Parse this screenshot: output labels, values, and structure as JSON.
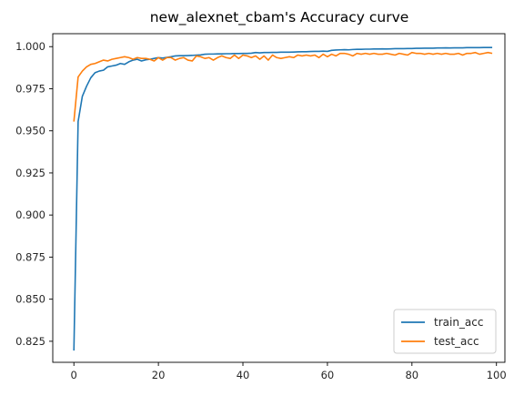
{
  "chart_data": {
    "type": "line",
    "title": "new_alexnet_cbam's Accuracy curve",
    "xlabel": "",
    "ylabel": "",
    "xlim": [
      -5,
      102
    ],
    "ylim": [
      0.8125,
      1.0077
    ],
    "xticks": [
      0,
      20,
      40,
      60,
      80,
      100
    ],
    "yticks": [
      0.825,
      0.85,
      0.875,
      0.9,
      0.925,
      0.95,
      0.975,
      1.0
    ],
    "ytick_labels": [
      "0.825",
      "0.850",
      "0.875",
      "0.900",
      "0.925",
      "0.950",
      "0.975",
      "1.000"
    ],
    "grid": false,
    "legend_position": "lower-right",
    "colors": {
      "train_acc": "#1f77b4",
      "test_acc": "#ff7f0e"
    },
    "series": [
      {
        "name": "train_acc",
        "color": "#1f77b4",
        "x": [
          0,
          1,
          2,
          3,
          4,
          5,
          6,
          7,
          8,
          9,
          10,
          11,
          12,
          13,
          14,
          15,
          16,
          17,
          18,
          19,
          20,
          21,
          22,
          23,
          24,
          25,
          26,
          27,
          28,
          29,
          30,
          31,
          32,
          33,
          34,
          35,
          36,
          37,
          38,
          39,
          40,
          41,
          42,
          43,
          44,
          45,
          46,
          47,
          48,
          49,
          50,
          51,
          52,
          53,
          54,
          55,
          56,
          57,
          58,
          59,
          60,
          61,
          62,
          63,
          64,
          65,
          66,
          67,
          68,
          69,
          70,
          71,
          72,
          73,
          74,
          75,
          76,
          77,
          78,
          79,
          80,
          81,
          82,
          83,
          84,
          85,
          86,
          87,
          88,
          89,
          90,
          91,
          92,
          93,
          94,
          95,
          96,
          97,
          98,
          99
        ],
        "values": [
          0.8195,
          0.9555,
          0.9705,
          0.9765,
          0.9815,
          0.9845,
          0.9855,
          0.986,
          0.988,
          0.9885,
          0.989,
          0.99,
          0.9895,
          0.991,
          0.992,
          0.9925,
          0.9915,
          0.9922,
          0.9925,
          0.993,
          0.9935,
          0.9932,
          0.9936,
          0.994,
          0.9945,
          0.9946,
          0.9946,
          0.9947,
          0.9948,
          0.995,
          0.9951,
          0.9955,
          0.9956,
          0.9956,
          0.9957,
          0.9957,
          0.9958,
          0.9958,
          0.9959,
          0.9959,
          0.996,
          0.996,
          0.9961,
          0.9965,
          0.9963,
          0.9965,
          0.9965,
          0.9966,
          0.9966,
          0.9967,
          0.9967,
          0.9967,
          0.9968,
          0.9969,
          0.997,
          0.997,
          0.9971,
          0.9972,
          0.9972,
          0.9973,
          0.9972,
          0.9978,
          0.998,
          0.9981,
          0.9982,
          0.9981,
          0.9983,
          0.9984,
          0.9984,
          0.9985,
          0.9985,
          0.9986,
          0.9986,
          0.9987,
          0.9986,
          0.9987,
          0.9988,
          0.9988,
          0.9988,
          0.9989,
          0.9989,
          0.999,
          0.999,
          0.9991,
          0.9991,
          0.9991,
          0.9992,
          0.9992,
          0.9993,
          0.9992,
          0.9993,
          0.9993,
          0.9993,
          0.9994,
          0.9994,
          0.9994,
          0.9994,
          0.9995,
          0.9995,
          0.9995
        ]
      },
      {
        "name": "test_acc",
        "color": "#ff7f0e",
        "x": [
          0,
          1,
          2,
          3,
          4,
          5,
          6,
          7,
          8,
          9,
          10,
          11,
          12,
          13,
          14,
          15,
          16,
          17,
          18,
          19,
          20,
          21,
          22,
          23,
          24,
          25,
          26,
          27,
          28,
          29,
          30,
          31,
          32,
          33,
          34,
          35,
          36,
          37,
          38,
          39,
          40,
          41,
          42,
          43,
          44,
          45,
          46,
          47,
          48,
          49,
          50,
          51,
          52,
          53,
          54,
          55,
          56,
          57,
          58,
          59,
          60,
          61,
          62,
          63,
          64,
          65,
          66,
          67,
          68,
          69,
          70,
          71,
          72,
          73,
          74,
          75,
          76,
          77,
          78,
          79,
          80,
          81,
          82,
          83,
          84,
          85,
          86,
          87,
          88,
          89,
          90,
          91,
          92,
          93,
          94,
          95,
          96,
          97,
          98,
          99
        ],
        "values": [
          0.9555,
          0.982,
          0.9855,
          0.988,
          0.9895,
          0.99,
          0.991,
          0.992,
          0.9915,
          0.9925,
          0.993,
          0.9935,
          0.994,
          0.9935,
          0.9925,
          0.9935,
          0.993,
          0.993,
          0.9925,
          0.9915,
          0.9935,
          0.992,
          0.9935,
          0.9935,
          0.992,
          0.993,
          0.9935,
          0.992,
          0.9915,
          0.9945,
          0.994,
          0.993,
          0.9935,
          0.992,
          0.9935,
          0.9945,
          0.9935,
          0.993,
          0.995,
          0.993,
          0.995,
          0.9945,
          0.9935,
          0.9945,
          0.9925,
          0.9945,
          0.992,
          0.995,
          0.9935,
          0.993,
          0.9935,
          0.994,
          0.9935,
          0.995,
          0.9945,
          0.995,
          0.9945,
          0.995,
          0.9935,
          0.9955,
          0.994,
          0.9955,
          0.9945,
          0.996,
          0.996,
          0.9955,
          0.9945,
          0.996,
          0.9955,
          0.996,
          0.9955,
          0.996,
          0.9955,
          0.9955,
          0.996,
          0.9955,
          0.995,
          0.996,
          0.9955,
          0.995,
          0.9965,
          0.996,
          0.996,
          0.9955,
          0.996,
          0.9955,
          0.996,
          0.9955,
          0.996,
          0.9955,
          0.9955,
          0.996,
          0.995,
          0.996,
          0.996,
          0.9965,
          0.9955,
          0.996,
          0.9965,
          0.996
        ]
      }
    ]
  }
}
